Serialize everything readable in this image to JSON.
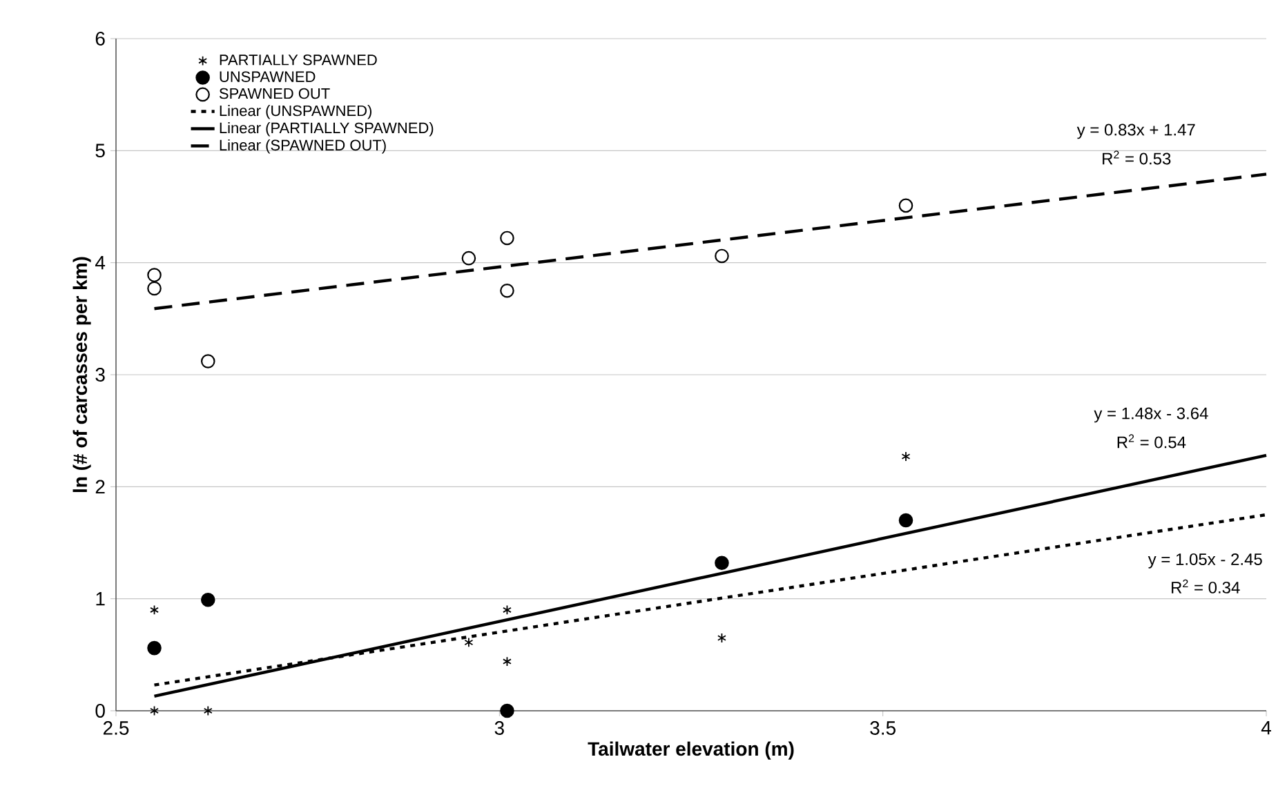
{
  "chart_data": {
    "type": "scatter",
    "xlabel": "Tailwater elevation (m)",
    "ylabel": "ln (# of carcasses per km)",
    "xlim": [
      2.5,
      4
    ],
    "ylim": [
      0,
      6
    ],
    "xticks": [
      2.5,
      3,
      3.5,
      4
    ],
    "yticks": [
      0,
      1,
      2,
      3,
      4,
      5,
      6
    ],
    "grid": "y",
    "legend": "top left",
    "series": [
      {
        "name": "PARTIALLY SPAWNED",
        "marker": "cross",
        "color": "#000000",
        "x": [
          2.55,
          2.55,
          2.62,
          2.96,
          3.01,
          3.01,
          3.29,
          3.53
        ],
        "values": [
          0.9,
          0,
          0,
          0.61,
          0.9,
          0.44,
          0.65,
          2.27
        ]
      },
      {
        "name": "UNSPAWNED",
        "marker": "circle",
        "color": "#000000",
        "x": [
          2.55,
          2.62,
          3.01,
          3.29,
          3.53
        ],
        "values": [
          0.56,
          0.99,
          0,
          1.32,
          1.7
        ]
      },
      {
        "name": "SPAWNED OUT",
        "marker": "circle",
        "color": "#ffffff",
        "x": [
          2.55,
          2.55,
          2.62,
          2.96,
          3.01,
          3.01,
          3.29,
          3.53
        ],
        "values": [
          3.89,
          3.77,
          3.12,
          4.04,
          4.22,
          3.75,
          4.06,
          4.51
        ]
      },
      {
        "name": "Linear (UNSPAWNED)",
        "type": "line",
        "line_style": "dotted",
        "color": "#000000",
        "x": [
          2.55,
          4
        ],
        "values": [
          0.23,
          1.75
        ]
      },
      {
        "name": "Linear (PARTIALLY SPAWNED)",
        "type": "line",
        "line_style": "solid",
        "color": "#000000",
        "x": [
          2.55,
          4
        ],
        "values": [
          0.13,
          2.28
        ]
      },
      {
        "name": "Linear (SPAWNED OUT)",
        "type": "line",
        "line_style": "dashed",
        "color": "#000000",
        "x": [
          2.55,
          4
        ],
        "values": [
          3.59,
          4.79
        ]
      }
    ],
    "annotations": [
      "y = 0.83x + 1.47",
      "R$^{2}$ = 0.53",
      "y = 1.48x - 3.64",
      "R$^{2}$ = 0.54",
      "y = 1.05x - 2.45",
      "R$^{2}$ = 0.34"
    ]
  }
}
